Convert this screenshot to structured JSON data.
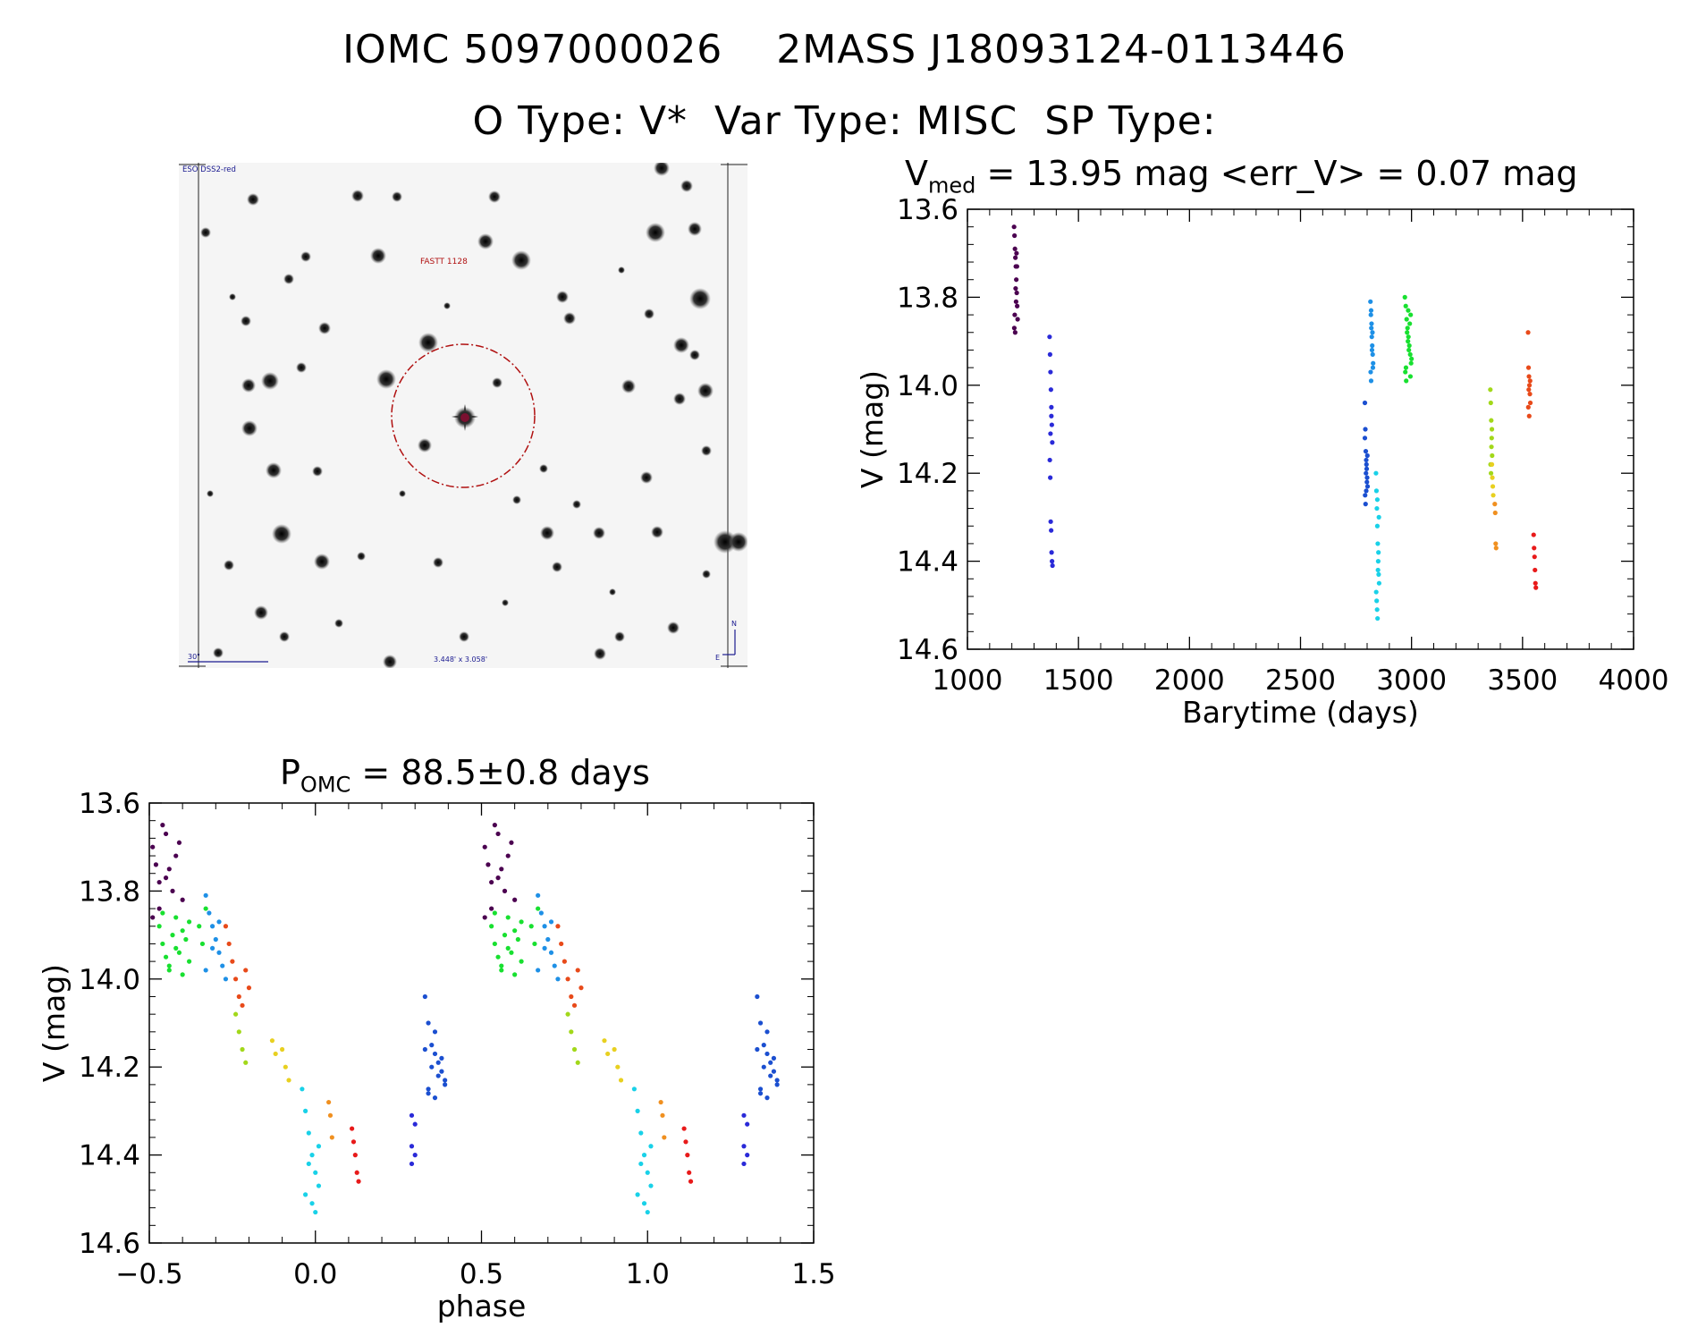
{
  "header": {
    "line1": "IOMC 5097000026    2MASS J18093124-0113446",
    "line2": "O Type: V*  Var Type: MISC  SP Type:"
  },
  "image_panel": {
    "survey_label": "ESO DSS2-red",
    "target_label": "FASTT 1128",
    "scale_label": "30\"",
    "fov_label": "3.448' x 3.058'",
    "north_label": "N",
    "east_label": "E"
  },
  "lightcurve": {
    "title_prefix": "V",
    "title_sub": "med",
    "title_rest": " = 13.95 mag <err_V> = 0.07 mag"
  },
  "phase_plot": {
    "title_prefix": "P",
    "title_sub": "OMC",
    "title_rest": " = 88.5±0.8 days"
  },
  "chart_data": [
    {
      "type": "scatter",
      "name": "lightcurve",
      "title": "V_med = 13.95 mag <err_V> = 0.07 mag",
      "xlabel": "Barytime (days)",
      "ylabel": "V (mag)",
      "xlim": [
        1000,
        4000
      ],
      "ylim": [
        14.6,
        13.6
      ],
      "xticks": [
        1000,
        1500,
        2000,
        2500,
        3000,
        3500,
        4000
      ],
      "yticks": [
        13.6,
        13.8,
        14.0,
        14.2,
        14.4,
        14.6
      ],
      "series": [
        {
          "name": "season-1",
          "color": "#4b0050",
          "x": [
            1210,
            1212,
            1214,
            1216,
            1218,
            1220,
            1222,
            1224,
            1226,
            1211,
            1215,
            1219,
            1223,
            1213,
            1217,
            1221
          ],
          "y": [
            13.64,
            13.66,
            13.69,
            13.71,
            13.73,
            13.76,
            13.79,
            13.82,
            13.85,
            13.87,
            13.88,
            13.81,
            13.73,
            13.84,
            13.78,
            13.7
          ]
        },
        {
          "name": "season-2",
          "color": "#2a2ad8",
          "x": [
            1370,
            1372,
            1374,
            1376,
            1378,
            1380,
            1382,
            1371,
            1373,
            1375,
            1377,
            1379,
            1381,
            1383,
            1374,
            1378
          ],
          "y": [
            13.89,
            13.93,
            13.97,
            14.01,
            14.05,
            14.09,
            14.13,
            14.17,
            14.21,
            14.31,
            14.33,
            14.38,
            14.4,
            14.41,
            14.11,
            14.07
          ]
        },
        {
          "name": "season-3",
          "color": "#1b4fd0",
          "x": [
            2790,
            2792,
            2794,
            2796,
            2798,
            2800,
            2802,
            2791,
            2793,
            2795,
            2797,
            2799,
            2801,
            2790,
            2796
          ],
          "y": [
            14.04,
            14.1,
            14.15,
            14.17,
            14.19,
            14.21,
            14.23,
            14.25,
            14.27,
            14.2,
            14.18,
            14.22,
            14.16,
            14.12,
            14.24
          ]
        },
        {
          "name": "season-4",
          "color": "#1e90e6",
          "x": [
            2815,
            2817,
            2819,
            2821,
            2823,
            2825,
            2827,
            2816,
            2818,
            2820,
            2822,
            2824,
            2826,
            2818
          ],
          "y": [
            13.81,
            13.84,
            13.87,
            13.89,
            13.91,
            13.93,
            13.95,
            13.97,
            13.99,
            13.86,
            13.92,
            13.88,
            13.96,
            13.83
          ]
        },
        {
          "name": "season-5",
          "color": "#19d1e8",
          "x": [
            2840,
            2842,
            2844,
            2846,
            2848,
            2850,
            2852,
            2854,
            2841,
            2843,
            2845,
            2847,
            2849,
            2851,
            2853,
            2846
          ],
          "y": [
            14.2,
            14.24,
            14.28,
            14.32,
            14.36,
            14.4,
            14.43,
            14.45,
            14.47,
            14.49,
            14.51,
            14.53,
            14.42,
            14.38,
            14.3,
            14.26
          ]
        },
        {
          "name": "season-6",
          "color": "#18e030",
          "x": [
            2970,
            2974,
            2978,
            2982,
            2986,
            2990,
            2994,
            2998,
            2972,
            2976,
            2980,
            2984,
            2988,
            2992,
            2996,
            3000,
            2975,
            2985,
            2995
          ],
          "y": [
            13.8,
            13.82,
            13.85,
            13.87,
            13.89,
            13.91,
            13.93,
            13.95,
            13.97,
            13.99,
            13.88,
            13.9,
            13.92,
            13.86,
            13.84,
            13.94,
            13.96,
            13.83,
            13.98
          ]
        },
        {
          "name": "season-7",
          "color": "#a2d81a",
          "x": [
            3355,
            3357,
            3359,
            3361,
            3363,
            3356,
            3358,
            3360,
            3362
          ],
          "y": [
            14.01,
            14.04,
            14.08,
            14.12,
            14.16,
            14.18,
            14.2,
            14.14,
            14.1
          ]
        },
        {
          "name": "season-8",
          "color": "#e8d020",
          "x": [
            3362,
            3364,
            3366,
            3368
          ],
          "y": [
            14.18,
            14.21,
            14.23,
            14.25
          ]
        },
        {
          "name": "season-9",
          "color": "#f09020",
          "x": [
            3375,
            3377,
            3379,
            3381
          ],
          "y": [
            14.27,
            14.29,
            14.36,
            14.37
          ]
        },
        {
          "name": "season-10",
          "color": "#e84a1a",
          "x": [
            3525,
            3527,
            3529,
            3531,
            3533,
            3535,
            3526,
            3530,
            3534,
            3528
          ],
          "y": [
            13.88,
            13.96,
            13.98,
            14.0,
            14.02,
            14.04,
            14.05,
            14.07,
            13.99,
            14.01
          ]
        },
        {
          "name": "season-11",
          "color": "#e81a1a",
          "x": [
            3550,
            3552,
            3554,
            3556,
            3558,
            3560
          ],
          "y": [
            14.34,
            14.37,
            14.39,
            14.42,
            14.45,
            14.46
          ]
        }
      ]
    },
    {
      "type": "scatter",
      "name": "phase-folded",
      "title": "P_OMC = 88.5±0.8 days",
      "xlabel": "phase",
      "ylabel": "V (mag)",
      "xlim": [
        -0.5,
        1.5
      ],
      "ylim": [
        14.6,
        13.6
      ],
      "xticks": [
        -0.5,
        0.0,
        0.5,
        1.0,
        1.5
      ],
      "yticks": [
        13.6,
        13.8,
        14.0,
        14.2,
        14.4,
        14.6
      ],
      "period_days": 88.5,
      "series": [
        {
          "name": "season-1",
          "color": "#4b0050",
          "x": [
            -0.49,
            -0.48,
            -0.47,
            -0.46,
            -0.45,
            -0.44,
            -0.43,
            -0.42,
            -0.41,
            -0.4,
            -0.49,
            -0.47,
            -0.45
          ],
          "y": [
            13.7,
            13.74,
            13.78,
            13.65,
            13.67,
            13.75,
            13.8,
            13.72,
            13.69,
            13.82,
            13.86,
            13.84,
            13.77
          ]
        },
        {
          "name": "season-6",
          "color": "#18e030",
          "x": [
            -0.47,
            -0.46,
            -0.45,
            -0.44,
            -0.43,
            -0.42,
            -0.41,
            -0.4,
            -0.39,
            -0.38,
            -0.46,
            -0.44,
            -0.42,
            -0.4,
            -0.38,
            -0.35,
            -0.34,
            -0.33
          ],
          "y": [
            13.88,
            13.92,
            13.95,
            13.97,
            13.9,
            13.86,
            13.94,
            13.99,
            13.91,
            13.87,
            13.85,
            13.98,
            13.93,
            13.89,
            13.96,
            13.88,
            13.92,
            13.84
          ]
        },
        {
          "name": "season-4",
          "color": "#1e90e6",
          "x": [
            -0.33,
            -0.32,
            -0.31,
            -0.3,
            -0.29,
            -0.28,
            -0.33,
            -0.31,
            -0.29,
            -0.27
          ],
          "y": [
            13.81,
            13.85,
            13.88,
            13.91,
            13.94,
            13.97,
            13.98,
            13.93,
            13.87,
            14.0
          ]
        },
        {
          "name": "season-10",
          "color": "#e84a1a",
          "x": [
            -0.27,
            -0.26,
            -0.25,
            -0.24,
            -0.23,
            -0.22,
            -0.21,
            -0.2
          ],
          "y": [
            13.88,
            13.92,
            13.96,
            14.0,
            14.04,
            14.06,
            13.98,
            14.02
          ]
        },
        {
          "name": "season-7",
          "color": "#a2d81a",
          "x": [
            -0.24,
            -0.23,
            -0.22,
            -0.21
          ],
          "y": [
            14.08,
            14.12,
            14.16,
            14.19
          ]
        },
        {
          "name": "season-8",
          "color": "#e8d020",
          "x": [
            -0.13,
            -0.12,
            -0.1,
            -0.09,
            -0.08
          ],
          "y": [
            14.14,
            14.17,
            14.16,
            14.2,
            14.23
          ]
        },
        {
          "name": "season-5",
          "color": "#19d1e8",
          "x": [
            -0.04,
            -0.03,
            -0.02,
            -0.01,
            0.0,
            0.01,
            -0.03,
            -0.01,
            0.0,
            0.01,
            -0.02
          ],
          "y": [
            14.25,
            14.3,
            14.35,
            14.4,
            14.44,
            14.47,
            14.49,
            14.51,
            14.53,
            14.38,
            14.42
          ]
        },
        {
          "name": "season-9",
          "color": "#f09020",
          "x": [
            0.04,
            0.045,
            0.05
          ],
          "y": [
            14.28,
            14.31,
            14.36
          ]
        },
        {
          "name": "season-11",
          "color": "#e81a1a",
          "x": [
            0.11,
            0.115,
            0.12,
            0.125,
            0.13
          ],
          "y": [
            14.34,
            14.37,
            14.4,
            14.44,
            14.46
          ]
        },
        {
          "name": "season-2",
          "color": "#2a2ad8",
          "x": [
            0.29,
            0.3,
            0.29,
            0.3,
            0.29
          ],
          "y": [
            14.31,
            14.33,
            14.38,
            14.4,
            14.42
          ]
        },
        {
          "name": "season-3",
          "color": "#1b4fd0",
          "x": [
            0.33,
            0.34,
            0.35,
            0.36,
            0.37,
            0.38,
            0.39,
            0.34,
            0.36,
            0.38,
            0.35,
            0.37,
            0.33,
            0.39,
            0.36,
            0.34
          ],
          "y": [
            14.04,
            14.1,
            14.15,
            14.17,
            14.19,
            14.21,
            14.23,
            14.25,
            14.27,
            14.18,
            14.2,
            14.22,
            14.16,
            14.24,
            14.12,
            14.26
          ]
        }
      ]
    }
  ]
}
